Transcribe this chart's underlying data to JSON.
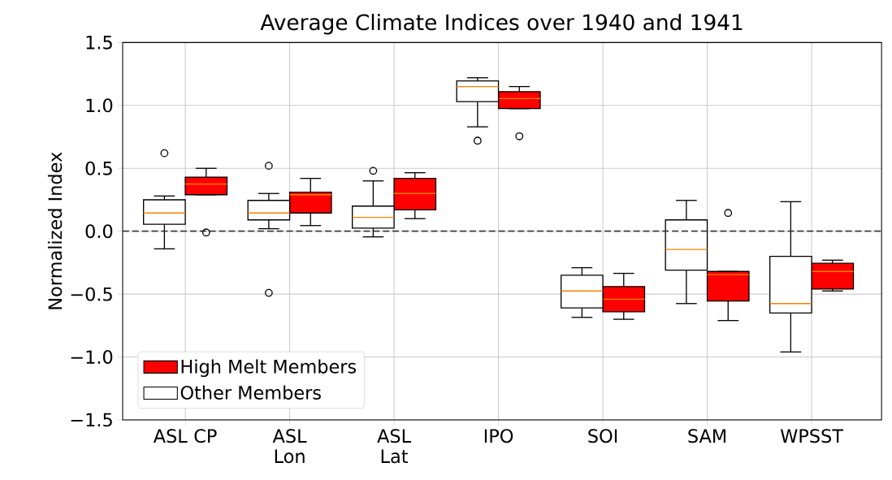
{
  "chart_data": {
    "type": "box",
    "title": "Average Climate Indices over 1940 and 1941",
    "ylabel": "Normalized Index",
    "categories": [
      "ASL CP",
      "ASL Lon",
      "ASL Lat",
      "IPO",
      "SOI",
      "SAM",
      "WPSST"
    ],
    "series": [
      {
        "name": "High Melt Members",
        "color": "#ff0000",
        "boxes": [
          {
            "low": 0.29,
            "q1": 0.29,
            "median": 0.375,
            "q3": 0.43,
            "high": 0.5,
            "outliers": [
              -0.01
            ]
          },
          {
            "low": 0.045,
            "q1": 0.145,
            "median": 0.29,
            "q3": 0.31,
            "high": 0.42
          },
          {
            "low": 0.1,
            "q1": 0.17,
            "median": 0.3,
            "q3": 0.42,
            "high": 0.465
          },
          {
            "low": 0.975,
            "q1": 0.975,
            "median": 1.055,
            "q3": 1.11,
            "high": 1.15,
            "outliers": [
              0.755
            ]
          },
          {
            "low": -0.7,
            "q1": -0.64,
            "median": -0.54,
            "q3": -0.44,
            "high": -0.335
          },
          {
            "low": -0.71,
            "q1": -0.555,
            "median": -0.345,
            "q3": -0.32,
            "high": -0.32,
            "outliers": [
              0.145
            ]
          },
          {
            "low": -0.475,
            "q1": -0.46,
            "median": -0.32,
            "q3": -0.255,
            "high": -0.23
          }
        ]
      },
      {
        "name": "Other Members",
        "color": "#ffffff",
        "boxes": [
          {
            "low": -0.14,
            "q1": 0.055,
            "median": 0.145,
            "q3": 0.25,
            "high": 0.28,
            "outliers": [
              0.62
            ]
          },
          {
            "low": 0.02,
            "q1": 0.09,
            "median": 0.145,
            "q3": 0.245,
            "high": 0.3,
            "outliers": [
              0.52,
              -0.49
            ]
          },
          {
            "low": -0.045,
            "q1": 0.025,
            "median": 0.11,
            "q3": 0.2,
            "high": 0.4,
            "outliers": [
              0.48
            ]
          },
          {
            "low": 0.83,
            "q1": 1.03,
            "median": 1.15,
            "q3": 1.195,
            "high": 1.22,
            "outliers": [
              0.72
            ]
          },
          {
            "low": -0.685,
            "q1": -0.61,
            "median": -0.475,
            "q3": -0.35,
            "high": -0.29
          },
          {
            "low": -0.575,
            "q1": -0.31,
            "median": -0.145,
            "q3": 0.09,
            "high": 0.245
          },
          {
            "low": -0.96,
            "q1": -0.65,
            "median": -0.575,
            "q3": -0.2,
            "high": 0.235
          }
        ]
      }
    ],
    "ylim": [
      -1.5,
      1.5
    ],
    "yticks": [
      {
        "value": -1.5,
        "label": "−1.5"
      },
      {
        "value": -1.0,
        "label": "−1.0"
      },
      {
        "value": -0.5,
        "label": "−0.5"
      },
      {
        "value": 0,
        "label": "0.0"
      },
      {
        "value": 0.5,
        "label": "0.5"
      },
      {
        "value": 1.0,
        "label": "1.0"
      },
      {
        "value": 1.5,
        "label": "1.5"
      }
    ],
    "ref_lines": [
      {
        "axis": "y",
        "value": 0,
        "color": "#333333",
        "line_style": "dashed"
      }
    ],
    "grid": true,
    "legend": "bottom left"
  }
}
